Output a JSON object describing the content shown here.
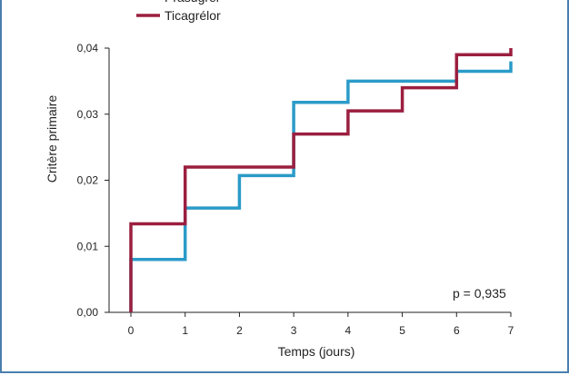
{
  "chart_data": {
    "type": "line",
    "step": true,
    "xlabel": "Temps (jours)",
    "ylabel": "Critère primaire",
    "xlim": [
      0,
      7
    ],
    "ylim": [
      0,
      0.04
    ],
    "x_ticks": [
      "0",
      "1",
      "2",
      "3",
      "4",
      "5",
      "6",
      "7"
    ],
    "y_ticks": [
      "0,00",
      "0,01",
      "0,02",
      "0,03",
      "0,04"
    ],
    "series": [
      {
        "name": "Prasugrel",
        "color": "#2b9bc8",
        "x": [
          0,
          0,
          1,
          1,
          2,
          2,
          3,
          3,
          4,
          4,
          5,
          5,
          6,
          6,
          7,
          7
        ],
        "y": [
          0,
          0.008,
          0.008,
          0.0158,
          0.0158,
          0.0207,
          0.0207,
          0.0318,
          0.0318,
          0.035,
          0.035,
          0.035,
          0.035,
          0.0365,
          0.0365,
          0.038
        ]
      },
      {
        "name": "Ticagrélor",
        "color": "#9b1f3f",
        "x": [
          0,
          0,
          1,
          1,
          3,
          3,
          4,
          4,
          5,
          5,
          6,
          6,
          7,
          7
        ],
        "y": [
          0,
          0.0134,
          0.0134,
          0.022,
          0.022,
          0.027,
          0.027,
          0.0305,
          0.0305,
          0.034,
          0.034,
          0.039,
          0.039,
          0.04
        ]
      }
    ],
    "legend": {
      "position": "top-left",
      "entries": [
        "Prasugrel",
        "Ticagrélor"
      ]
    },
    "annotation": "p = 0,935",
    "grid": false
  }
}
